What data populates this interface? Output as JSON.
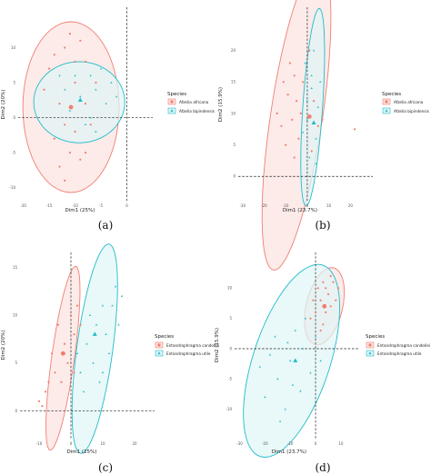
{
  "colors": {
    "series1": "#f07f72",
    "series2": "#22bcc8",
    "fill1": "#fbe3df",
    "fill2": "#dff5f7",
    "overlap": "#e5e5dc"
  },
  "chart_data": [
    {
      "id": "a",
      "type": "scatter",
      "caption": "(a)",
      "xlabel": "Dim1 (25%)",
      "ylabel": "Dim2 (20%)",
      "xlim": [
        -21,
        3.6
      ],
      "ylim": [
        -12,
        15
      ],
      "xticks": [
        -20,
        -15,
        -10,
        -5,
        0
      ],
      "yticks": [
        -10,
        -5,
        0,
        5,
        10
      ],
      "legend": {
        "title": "Species",
        "position": "right"
      },
      "series": [
        {
          "name": "Afzelia africana",
          "marker": "circle",
          "centroid": [
            -10.8,
            1.5
          ],
          "ellipse": {
            "cx": -10.8,
            "cy": 1.5,
            "rx": 9.3,
            "ry": 12.2,
            "angle": 0
          },
          "points": [
            [
              -15,
              7
            ],
            [
              -12,
              10
            ],
            [
              -10,
              5
            ],
            [
              -8,
              2
            ],
            [
              -11,
              -5
            ],
            [
              -9,
              -6
            ],
            [
              -12,
              -9
            ],
            [
              -13,
              2
            ],
            [
              -7,
              -1
            ],
            [
              -10,
              -2
            ],
            [
              -14,
              -3
            ],
            [
              -8,
              8
            ],
            [
              -11,
              12
            ],
            [
              -13,
              -7
            ],
            [
              -9,
              11
            ],
            [
              -16,
              4
            ],
            [
              -6,
              5
            ],
            [
              -12,
              -1
            ],
            [
              -8,
              -5
            ],
            [
              -14,
              9
            ],
            [
              -10,
              8
            ]
          ]
        },
        {
          "name": "Afzelia bipindensis",
          "marker": "triangle",
          "centroid": [
            -9,
            2.5
          ],
          "ellipse": {
            "cx": -9.2,
            "cy": 2.2,
            "rx": 8.8,
            "ry": 5.8,
            "angle": 0
          },
          "points": [
            [
              -9,
              3
            ],
            [
              -6,
              4
            ],
            [
              -4,
              2
            ],
            [
              -7,
              0
            ],
            [
              -10,
              6
            ],
            [
              -3,
              5
            ],
            [
              -8,
              -1
            ],
            [
              -5,
              7
            ],
            [
              -12,
              4
            ],
            [
              -6,
              -2
            ],
            [
              -11,
              1
            ],
            [
              -2,
              3
            ],
            [
              -13,
              6
            ],
            [
              -7,
              6
            ]
          ]
        }
      ]
    },
    {
      "id": "b",
      "type": "scatter",
      "caption": "(b)",
      "xlabel": "Dim1 (23.7%)",
      "ylabel": "Dim2 (15.9%)",
      "xlim": [
        -32,
        27
      ],
      "ylim": [
        -4,
        26
      ],
      "xticks": [
        -30,
        -20,
        -10,
        0,
        10,
        20
      ],
      "yticks": [
        0,
        5,
        10,
        15,
        20
      ],
      "legend": {
        "title": "Species",
        "position": "right"
      },
      "series": [
        {
          "name": "Afzelia africana",
          "marker": "circle",
          "centroid": [
            1,
            9.5
          ],
          "ellipse": {
            "cx": -5,
            "cy": 9.5,
            "rx": 27,
            "ry": 11,
            "angle": 62
          },
          "points": [
            [
              -10,
              5
            ],
            [
              -5,
              12
            ],
            [
              -8,
              18
            ],
            [
              -3,
              10
            ],
            [
              1,
              20
            ],
            [
              -6,
              3
            ],
            [
              -12,
              8
            ],
            [
              -2,
              15
            ],
            [
              5,
              8
            ],
            [
              -9,
              13
            ],
            [
              3,
              12
            ],
            [
              -4,
              6
            ],
            [
              -14,
              10
            ],
            [
              -6,
              16
            ],
            [
              2,
              4
            ],
            [
              -11,
              15
            ],
            [
              7,
              9
            ],
            [
              -7,
              9
            ],
            [
              22,
              7.5
            ]
          ]
        },
        {
          "name": "Afzelia bipindensis",
          "marker": "triangle",
          "centroid": [
            3,
            8.5
          ],
          "ellipse": {
            "cx": 2.5,
            "cy": 11,
            "rx": 16,
            "ry": 4.5,
            "angle": 78
          },
          "points": [
            [
              0,
              9
            ],
            [
              2,
              14
            ],
            [
              4,
              6
            ],
            [
              -1,
              18
            ],
            [
              5,
              11
            ],
            [
              1,
              3
            ],
            [
              3,
              20
            ],
            [
              -2,
              7
            ],
            [
              6,
              15
            ],
            [
              0,
              12
            ],
            [
              4,
              2
            ],
            [
              2,
              16
            ]
          ]
        }
      ]
    },
    {
      "id": "c",
      "type": "scatter",
      "caption": "(c)",
      "xlabel": "Dim1 (25%)",
      "ylabel": "Dim2 (20%)",
      "xlim": [
        -16,
        24
      ],
      "ylim": [
        -3,
        16
      ],
      "xticks": [
        -10,
        0,
        10,
        20
      ],
      "yticks": [
        0,
        5,
        10,
        15
      ],
      "legend": {
        "title": "Species",
        "position": "right"
      },
      "series": [
        {
          "name": "Entandrophragma candollei",
          "marker": "circle",
          "centroid": [
            -2.5,
            6
          ],
          "ellipse": {
            "cx": -2.5,
            "cy": 5.5,
            "rx": 10.5,
            "ry": 3.3,
            "angle": 65
          },
          "points": [
            [
              -8,
              2
            ],
            [
              -5,
              4
            ],
            [
              -2,
              7
            ],
            [
              1,
              8
            ],
            [
              -10,
              1
            ],
            [
              -3,
              3
            ],
            [
              0,
              10
            ],
            [
              -6,
              6
            ],
            [
              2,
              11
            ],
            [
              -4,
              9
            ],
            [
              -1,
              5
            ],
            [
              -7,
              3
            ],
            [
              3,
              9
            ],
            [
              -9,
              0.5
            ],
            [
              -2,
              6
            ],
            [
              1,
              4
            ]
          ]
        },
        {
          "name": "Entandrophragma utile",
          "marker": "triangle",
          "centroid": [
            7.5,
            8
          ],
          "ellipse": {
            "cx": 7.5,
            "cy": 6.5,
            "rx": 12,
            "ry": 5.2,
            "angle": 63
          },
          "points": [
            [
              5,
              7
            ],
            [
              8,
              9
            ],
            [
              10,
              11
            ],
            [
              12,
              6
            ],
            [
              3,
              4
            ],
            [
              7,
              5
            ],
            [
              14,
              13
            ],
            [
              9,
              3
            ],
            [
              11,
              8
            ],
            [
              6,
              10
            ],
            [
              15,
              9
            ],
            [
              4,
              2
            ],
            [
              13,
              11
            ],
            [
              2,
              6
            ],
            [
              10,
              4
            ],
            [
              16,
              12
            ]
          ]
        }
      ]
    },
    {
      "id": "d",
      "type": "scatter",
      "caption": "(d)",
      "xlabel": "Dim1 (23.7%)",
      "ylabel": "Dim2 (15.9%)",
      "xlim": [
        -32,
        14
      ],
      "ylim": [
        -15,
        15
      ],
      "xticks": [
        -30,
        -20,
        -10,
        0,
        10
      ],
      "yticks": [
        -10,
        -5,
        0,
        5,
        10
      ],
      "legend": {
        "title": "Species",
        "position": "right"
      },
      "series": [
        {
          "name": "Entandrophragma candollei",
          "marker": "circle",
          "centroid": [
            3.5,
            7
          ],
          "ellipse": {
            "cx": 3.5,
            "cy": 7,
            "rx": 8.5,
            "ry": 5.5,
            "angle": 30
          },
          "points": [
            [
              2,
              8
            ],
            [
              4,
              10
            ],
            [
              6,
              7
            ],
            [
              0,
              6
            ],
            [
              3,
              4
            ],
            [
              7,
              11
            ],
            [
              5,
              9
            ],
            [
              1,
              10
            ],
            [
              -1,
              8
            ],
            [
              8,
              8
            ],
            [
              4,
              6
            ],
            [
              6,
              12
            ],
            [
              2,
              3
            ],
            [
              9,
              10
            ],
            [
              3,
              11
            ],
            [
              -2,
              5
            ]
          ]
        },
        {
          "name": "Entandrophragma utile",
          "marker": "triangle",
          "centroid": [
            -8,
            -2
          ],
          "ellipse": {
            "cx": -9.5,
            "cy": -2,
            "rx": 22,
            "ry": 11.5,
            "angle": 36
          },
          "points": [
            [
              -10,
              -2
            ],
            [
              -15,
              -5
            ],
            [
              -5,
              0
            ],
            [
              -20,
              -8
            ],
            [
              -8,
              3
            ],
            [
              -12,
              -10
            ],
            [
              -2,
              -4
            ],
            [
              -18,
              -1
            ],
            [
              -6,
              -7
            ],
            [
              0,
              2
            ],
            [
              -14,
              -12
            ],
            [
              -22,
              -3
            ],
            [
              -4,
              5
            ],
            [
              -9,
              -6
            ],
            [
              2,
              -2
            ],
            [
              -16,
              2
            ],
            [
              -11,
              1
            ]
          ]
        }
      ]
    }
  ]
}
